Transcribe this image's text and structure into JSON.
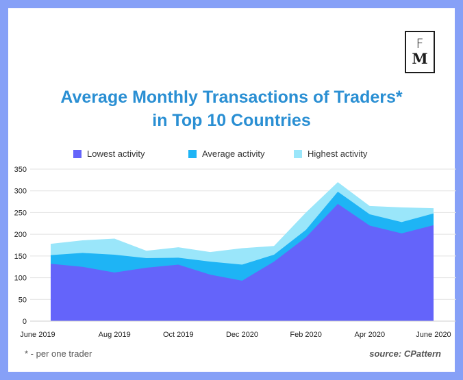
{
  "logo": {
    "line1": "F",
    "line2": "M"
  },
  "title_lines": [
    "Average Monthly Transactions of Traders*",
    "in Top 10 Countries"
  ],
  "footnote": "* - per one trader",
  "source": "source: CPattern",
  "colors": {
    "background": "#86a0f7",
    "title": "#2a8fd3",
    "lowest": "#6464fa",
    "average": "#1eb4f5",
    "highest": "#9ae6fa"
  },
  "chart_data": {
    "type": "area",
    "stacked": false,
    "title": "Average Monthly Transactions of Traders* in Top 10 Countries",
    "x": [
      "June 2019",
      "July 2019",
      "Aug 2019",
      "Sep 2019",
      "Oct 2019",
      "Nov 2019",
      "Dec 2020",
      "Jan 2020",
      "Feb 2020",
      "Mar 2020",
      "Apr 2020",
      "May 2020",
      "June 2020"
    ],
    "x_tick_labels": [
      "June 2019",
      "",
      "Aug 2019",
      "",
      "Oct 2019",
      "",
      "Dec 2020",
      "",
      "Feb 2020",
      "",
      "Apr 2020",
      "",
      "June 2020"
    ],
    "series": [
      {
        "name": "Highest activity",
        "values": [
          178,
          186,
          190,
          162,
          170,
          159,
          168,
          173,
          250,
          320,
          265,
          262,
          260
        ]
      },
      {
        "name": "Average activity",
        "values": [
          152,
          157,
          153,
          145,
          146,
          137,
          130,
          153,
          210,
          298,
          246,
          228,
          248
        ]
      },
      {
        "name": "Lowest activity",
        "values": [
          132,
          125,
          112,
          123,
          130,
          107,
          93,
          137,
          193,
          270,
          220,
          202,
          221
        ]
      }
    ],
    "legend": [
      "Lowest activity",
      "Average activity",
      "Highest activity"
    ],
    "y_ticks": [
      0,
      50,
      100,
      150,
      200,
      250,
      300,
      350
    ],
    "ylim": [
      0,
      350
    ],
    "xlabel": "",
    "ylabel": "",
    "grid": true,
    "legend_position": "top"
  }
}
